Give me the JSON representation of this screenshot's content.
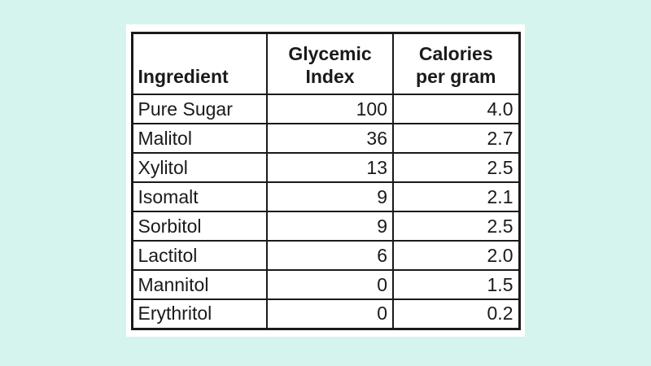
{
  "page": {
    "background_color": "#d6f4ee",
    "panel_color": "#ffffff",
    "border_color": "#1a1a1a",
    "text_color": "#1a1a1a"
  },
  "table": {
    "headers": [
      "Ingredient",
      "Glycemic\nIndex",
      "Calories\nper gram"
    ],
    "header_keys": [
      "ingredient",
      "glycemic-index",
      "calories-per-gram"
    ],
    "rows": [
      [
        "Pure Sugar",
        "100",
        "4.0"
      ],
      [
        "Malitol",
        "36",
        "2.7"
      ],
      [
        "Xylitol",
        "13",
        "2.5"
      ],
      [
        "Isomalt",
        "9",
        "2.1"
      ],
      [
        "Sorbitol",
        "9",
        "2.5"
      ],
      [
        "Lactitol",
        "6",
        "2.0"
      ],
      [
        "Mannitol",
        "0",
        "1.5"
      ],
      [
        "Erythritol",
        "0",
        "0.2"
      ]
    ]
  },
  "chart_data": {
    "type": "table",
    "title": "",
    "columns": [
      "Ingredient",
      "Glycemic Index",
      "Calories per gram"
    ],
    "rows": [
      [
        "Pure Sugar",
        100,
        4.0
      ],
      [
        "Malitol",
        36,
        2.7
      ],
      [
        "Xylitol",
        13,
        2.5
      ],
      [
        "Isomalt",
        9,
        2.1
      ],
      [
        "Sorbitol",
        9,
        2.5
      ],
      [
        "Lactitol",
        6,
        2.0
      ],
      [
        "Mannitol",
        0,
        1.5
      ],
      [
        "Erythritol",
        0,
        0.2
      ]
    ]
  }
}
